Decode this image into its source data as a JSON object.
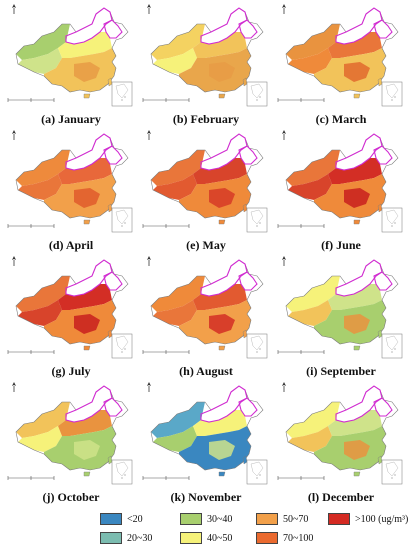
{
  "panels": [
    {
      "caption": "(a) January",
      "palette": [
        "#a8cf6e",
        "#cfe38a",
        "#f6f27a",
        "#f2c35a",
        "#e89b45"
      ]
    },
    {
      "caption": "(b) February",
      "palette": [
        "#f4d261",
        "#f6f27a",
        "#f2c35a",
        "#e9a64b",
        "#e89b45"
      ]
    },
    {
      "caption": "(c) March",
      "palette": [
        "#e9933f",
        "#ef8a3a",
        "#e9763a",
        "#f2c35a",
        "#e26a2e"
      ]
    },
    {
      "caption": "(d) April",
      "palette": [
        "#ee8a3c",
        "#e9763a",
        "#e8683a",
        "#f2a04a",
        "#e05a2c"
      ]
    },
    {
      "caption": "(e) May",
      "palette": [
        "#e9763a",
        "#e25a30",
        "#d8442b",
        "#ef8a3a",
        "#d63a27"
      ]
    },
    {
      "caption": "(f) June",
      "palette": [
        "#e9763a",
        "#d8442b",
        "#d32e25",
        "#ef8a3a",
        "#c81e1e"
      ]
    },
    {
      "caption": "(g) July",
      "palette": [
        "#e9763a",
        "#d8442b",
        "#d32e25",
        "#ef8a3a",
        "#c81e1e"
      ]
    },
    {
      "caption": "(h) August",
      "palette": [
        "#ef8a3a",
        "#e9763a",
        "#e25a30",
        "#f2a04a",
        "#d32e25"
      ]
    },
    {
      "caption": "(i) September",
      "palette": [
        "#f6f27a",
        "#f2c35a",
        "#cfe38a",
        "#a8cf6e",
        "#e9933f"
      ]
    },
    {
      "caption": "(j) October",
      "palette": [
        "#f2c35a",
        "#f6f27a",
        "#e9933f",
        "#a8cf6e",
        "#cfe38a"
      ]
    },
    {
      "caption": "(k) November",
      "palette": [
        "#5aa8c8",
        "#a8cf6e",
        "#f6f27a",
        "#3a87c0",
        "#cfe38a"
      ]
    },
    {
      "caption": "(l) December",
      "palette": [
        "#f6f27a",
        "#f2c35a",
        "#cfe38a",
        "#a8cf6e",
        "#e9933f"
      ]
    }
  ],
  "legend": [
    {
      "label": "<20",
      "color": "#3a87c0"
    },
    {
      "label": "30~40",
      "color": "#a8cf6e"
    },
    {
      "label": "50~70",
      "color": "#f2a04a"
    },
    {
      "label": ">100 (ug/m³)",
      "color": "#d42a22"
    },
    {
      "label": "20~30",
      "color": "#7bbcb0"
    },
    {
      "label": "40~50",
      "color": "#f6f27a"
    },
    {
      "label": "70~100",
      "color": "#ea6a2f"
    }
  ],
  "colors": {
    "boundary": "#d12bd1",
    "outline": "#7a7a7a"
  }
}
